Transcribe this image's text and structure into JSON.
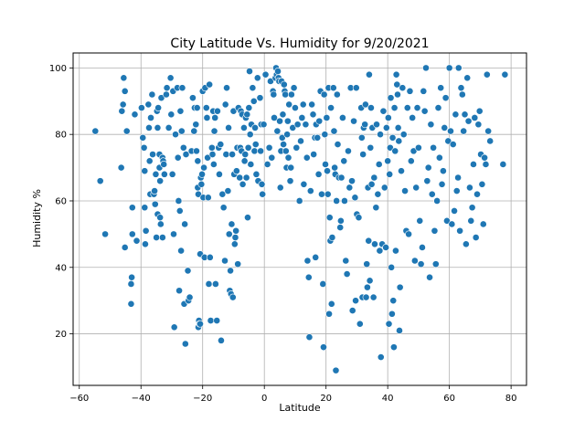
{
  "chart_data": {
    "type": "scatter",
    "title": "City Latitude Vs. Humidity for 9/20/2021",
    "xlabel": "Latitude",
    "ylabel": "Humidity %",
    "xlim": [
      -62,
      85
    ],
    "ylim": [
      4.5,
      104.5
    ],
    "xticks": [
      -60,
      -40,
      -20,
      0,
      20,
      40,
      60,
      80
    ],
    "yticks": [
      20,
      40,
      60,
      80,
      100
    ],
    "grid": true,
    "marker_color": "#1f77b4",
    "marker_edge_color": "#ffffff",
    "points": [
      [
        -54.8,
        81
      ],
      [
        -53.2,
        66
      ],
      [
        -51.6,
        50
      ],
      [
        -46.2,
        87
      ],
      [
        -46.4,
        70
      ],
      [
        -45.8,
        89
      ],
      [
        -45.6,
        97
      ],
      [
        -45.2,
        93
      ],
      [
        -45.2,
        46
      ],
      [
        -44.6,
        81
      ],
      [
        -42.8,
        58
      ],
      [
        -42.8,
        50
      ],
      [
        -43.0,
        37
      ],
      [
        -43.2,
        35
      ],
      [
        -43.2,
        29
      ],
      [
        -42.0,
        86
      ],
      [
        -41.4,
        48
      ],
      [
        -39.8,
        88
      ],
      [
        -39.4,
        79
      ],
      [
        -39.0,
        76
      ],
      [
        -38.8,
        69
      ],
      [
        -38.8,
        58
      ],
      [
        -38.6,
        47
      ],
      [
        -38.4,
        51
      ],
      [
        -37.6,
        89
      ],
      [
        -37.4,
        82
      ],
      [
        -37.2,
        72
      ],
      [
        -37.0,
        62
      ],
      [
        -36.8,
        85
      ],
      [
        -36.4,
        92
      ],
      [
        -36.2,
        74
      ],
      [
        -35.8,
        62
      ],
      [
        -35.6,
        63
      ],
      [
        -35.4,
        59
      ],
      [
        -35.2,
        68
      ],
      [
        -35.0,
        49
      ],
      [
        -34.8,
        87
      ],
      [
        -34.6,
        82
      ],
      [
        -34.6,
        56
      ],
      [
        -34.4,
        88
      ],
      [
        -34.0,
        74
      ],
      [
        -34.0,
        70
      ],
      [
        -33.8,
        66
      ],
      [
        -33.8,
        55
      ],
      [
        -33.6,
        53
      ],
      [
        -33.4,
        91
      ],
      [
        -33.0,
        73
      ],
      [
        -33.0,
        49
      ],
      [
        -32.8,
        72
      ],
      [
        -32.6,
        71
      ],
      [
        -32.4,
        68
      ],
      [
        -31.8,
        92
      ],
      [
        -31.6,
        94
      ],
      [
        -31.0,
        82
      ],
      [
        -30.4,
        97
      ],
      [
        -30.2,
        86
      ],
      [
        -29.8,
        68
      ],
      [
        -29.6,
        93
      ],
      [
        -29.4,
        50
      ],
      [
        -29.2,
        22
      ],
      [
        -28.8,
        80
      ],
      [
        -28.2,
        94
      ],
      [
        -28.0,
        73
      ],
      [
        -27.8,
        60
      ],
      [
        -27.6,
        33
      ],
      [
        -27.4,
        57
      ],
      [
        -27.2,
        87
      ],
      [
        -27.0,
        45
      ],
      [
        -26.8,
        81
      ],
      [
        -26.6,
        94
      ],
      [
        -26.2,
        76
      ],
      [
        -26.0,
        29
      ],
      [
        -25.8,
        53
      ],
      [
        -25.6,
        17
      ],
      [
        -25.4,
        74
      ],
      [
        -24.8,
        39
      ],
      [
        -24.6,
        30
      ],
      [
        -24.2,
        31
      ],
      [
        -23.6,
        75
      ],
      [
        -23.2,
        91
      ],
      [
        -22.8,
        81
      ],
      [
        -22.6,
        88
      ],
      [
        -22.2,
        83
      ],
      [
        -22.0,
        75
      ],
      [
        -21.8,
        88
      ],
      [
        -21.6,
        72
      ],
      [
        -21.6,
        64
      ],
      [
        -21.4,
        62
      ],
      [
        -21.4,
        22
      ],
      [
        -21.2,
        24
      ],
      [
        -21.0,
        23
      ],
      [
        -20.8,
        44
      ],
      [
        -20.8,
        23
      ],
      [
        -20.6,
        67
      ],
      [
        -20.4,
        65
      ],
      [
        -20.2,
        68
      ],
      [
        -20.0,
        93
      ],
      [
        -19.8,
        61
      ],
      [
        -19.6,
        70
      ],
      [
        -19.4,
        43
      ],
      [
        -19.2,
        94
      ],
      [
        -18.8,
        88
      ],
      [
        -18.6,
        85
      ],
      [
        -18.4,
        73
      ],
      [
        -18.2,
        61
      ],
      [
        -18.0,
        35
      ],
      [
        -17.8,
        95
      ],
      [
        -17.6,
        43
      ],
      [
        -17.4,
        24
      ],
      [
        -17.0,
        76
      ],
      [
        -16.8,
        74
      ],
      [
        -16.6,
        87
      ],
      [
        -16.4,
        71
      ],
      [
        -16.2,
        81
      ],
      [
        -16.0,
        85
      ],
      [
        -15.8,
        35
      ],
      [
        -15.4,
        24
      ],
      [
        -15.2,
        87
      ],
      [
        -14.8,
        76
      ],
      [
        -14.6,
        68
      ],
      [
        -14.2,
        77
      ],
      [
        -14.0,
        18
      ],
      [
        -13.6,
        62
      ],
      [
        -13.2,
        58
      ],
      [
        -12.8,
        42
      ],
      [
        -12.6,
        89
      ],
      [
        -12.4,
        74
      ],
      [
        -12.2,
        94
      ],
      [
        -11.8,
        63
      ],
      [
        -11.6,
        82
      ],
      [
        -11.4,
        50
      ],
      [
        -11.2,
        33
      ],
      [
        -11.0,
        39
      ],
      [
        -10.8,
        32
      ],
      [
        -10.6,
        53
      ],
      [
        -10.4,
        74
      ],
      [
        -10.2,
        31
      ],
      [
        -10.0,
        87
      ],
      [
        -9.8,
        68
      ],
      [
        -9.6,
        47
      ],
      [
        -9.4,
        49
      ],
      [
        -9.2,
        51
      ],
      [
        -9.0,
        69
      ],
      [
        -8.8,
        76
      ],
      [
        -8.6,
        41
      ],
      [
        -8.4,
        88
      ],
      [
        -8.0,
        67
      ],
      [
        -7.8,
        76
      ],
      [
        -7.6,
        87
      ],
      [
        -7.4,
        75
      ],
      [
        -7.2,
        86
      ],
      [
        -7.0,
        65
      ],
      [
        -6.6,
        82
      ],
      [
        -6.4,
        72
      ],
      [
        -6.2,
        74
      ],
      [
        -6.0,
        85
      ],
      [
        -5.8,
        67
      ],
      [
        -5.6,
        86
      ],
      [
        -5.4,
        55
      ],
      [
        -5.2,
        76
      ],
      [
        -5.0,
        88
      ],
      [
        -4.8,
        99
      ],
      [
        -4.6,
        80
      ],
      [
        -4.4,
        71
      ],
      [
        -4.2,
        83
      ],
      [
        -3.8,
        94
      ],
      [
        -3.4,
        90
      ],
      [
        -3.2,
        75
      ],
      [
        -3.0,
        82
      ],
      [
        -2.8,
        77
      ],
      [
        -2.6,
        68
      ],
      [
        -2.2,
        97
      ],
      [
        -2.0,
        66
      ],
      [
        -1.4,
        91
      ],
      [
        -1.2,
        75
      ],
      [
        -1.0,
        83
      ],
      [
        -0.8,
        65
      ],
      [
        -0.6,
        62
      ],
      [
        -0.2,
        83
      ],
      [
        0.4,
        98
      ],
      [
        1.0,
        71
      ],
      [
        1.6,
        76
      ],
      [
        2.0,
        96
      ],
      [
        2.4,
        73
      ],
      [
        2.8,
        93
      ],
      [
        3.0,
        92
      ],
      [
        3.2,
        85
      ],
      [
        3.6,
        97
      ],
      [
        3.8,
        100
      ],
      [
        4.0,
        98
      ],
      [
        4.2,
        81
      ],
      [
        4.4,
        99
      ],
      [
        4.6,
        97
      ],
      [
        4.8,
        96
      ],
      [
        5.0,
        84
      ],
      [
        5.2,
        64
      ],
      [
        5.4,
        75
      ],
      [
        5.6,
        96
      ],
      [
        5.8,
        79
      ],
      [
        6.0,
        86
      ],
      [
        6.2,
        77
      ],
      [
        6.4,
        95
      ],
      [
        6.6,
        93
      ],
      [
        6.8,
        92
      ],
      [
        7.0,
        75
      ],
      [
        7.2,
        70
      ],
      [
        7.4,
        80
      ],
      [
        7.6,
        84
      ],
      [
        7.8,
        73
      ],
      [
        8.0,
        89
      ],
      [
        8.4,
        66
      ],
      [
        8.6,
        70
      ],
      [
        8.8,
        92
      ],
      [
        9.2,
        82
      ],
      [
        9.6,
        94
      ],
      [
        10.0,
        88
      ],
      [
        10.4,
        76
      ],
      [
        10.8,
        83
      ],
      [
        11.4,
        60
      ],
      [
        11.8,
        78
      ],
      [
        12.2,
        85
      ],
      [
        12.6,
        89
      ],
      [
        12.8,
        65
      ],
      [
        13.4,
        83
      ],
      [
        13.8,
        73
      ],
      [
        14.0,
        42
      ],
      [
        14.4,
        37
      ],
      [
        14.6,
        19
      ],
      [
        15.0,
        63
      ],
      [
        15.4,
        89
      ],
      [
        15.8,
        86
      ],
      [
        16.0,
        74
      ],
      [
        16.4,
        79
      ],
      [
        16.6,
        43
      ],
      [
        16.8,
        83
      ],
      [
        17.2,
        79
      ],
      [
        17.6,
        68
      ],
      [
        17.8,
        84
      ],
      [
        18.2,
        93
      ],
      [
        18.6,
        62
      ],
      [
        19.0,
        35
      ],
      [
        19.2,
        16
      ],
      [
        19.4,
        92
      ],
      [
        19.6,
        80
      ],
      [
        19.8,
        71
      ],
      [
        20.2,
        85
      ],
      [
        20.4,
        69
      ],
      [
        20.6,
        62
      ],
      [
        20.8,
        94
      ],
      [
        21.0,
        26
      ],
      [
        21.2,
        55
      ],
      [
        21.4,
        48
      ],
      [
        21.6,
        88
      ],
      [
        21.8,
        29
      ],
      [
        22.0,
        49
      ],
      [
        22.4,
        94
      ],
      [
        22.6,
        81
      ],
      [
        22.8,
        70
      ],
      [
        23.0,
        68
      ],
      [
        23.2,
        9
      ],
      [
        23.4,
        60
      ],
      [
        23.6,
        92
      ],
      [
        23.8,
        77
      ],
      [
        24.2,
        67
      ],
      [
        24.6,
        52
      ],
      [
        24.8,
        54
      ],
      [
        25.0,
        67
      ],
      [
        25.4,
        85
      ],
      [
        25.8,
        72
      ],
      [
        26.0,
        60
      ],
      [
        26.4,
        42
      ],
      [
        26.8,
        38
      ],
      [
        27.2,
        75
      ],
      [
        27.6,
        64
      ],
      [
        28.0,
        94
      ],
      [
        28.4,
        66
      ],
      [
        28.6,
        27
      ],
      [
        29.0,
        84
      ],
      [
        29.4,
        61
      ],
      [
        29.6,
        30
      ],
      [
        29.8,
        94
      ],
      [
        30.0,
        56
      ],
      [
        30.6,
        55
      ],
      [
        31.0,
        23
      ],
      [
        31.4,
        88
      ],
      [
        31.6,
        79
      ],
      [
        31.8,
        31
      ],
      [
        32.0,
        74
      ],
      [
        32.2,
        82
      ],
      [
        32.6,
        83
      ],
      [
        32.8,
        89
      ],
      [
        33.0,
        31
      ],
      [
        33.2,
        41
      ],
      [
        33.4,
        34
      ],
      [
        33.6,
        64
      ],
      [
        33.8,
        48
      ],
      [
        34.0,
        98
      ],
      [
        34.2,
        36
      ],
      [
        34.4,
        76
      ],
      [
        34.6,
        88
      ],
      [
        34.8,
        65
      ],
      [
        35.0,
        82
      ],
      [
        35.4,
        31
      ],
      [
        35.6,
        67
      ],
      [
        35.8,
        47
      ],
      [
        36.2,
        58
      ],
      [
        36.4,
        83
      ],
      [
        36.8,
        62
      ],
      [
        37.2,
        71
      ],
      [
        37.4,
        45
      ],
      [
        37.6,
        80
      ],
      [
        37.8,
        13
      ],
      [
        38.2,
        47
      ],
      [
        38.6,
        87
      ],
      [
        39.0,
        64
      ],
      [
        39.4,
        46
      ],
      [
        39.6,
        82
      ],
      [
        40.0,
        72
      ],
      [
        40.2,
        85
      ],
      [
        40.4,
        23
      ],
      [
        40.6,
        68
      ],
      [
        40.8,
        76
      ],
      [
        41.0,
        91
      ],
      [
        41.2,
        40
      ],
      [
        41.4,
        26
      ],
      [
        41.6,
        79
      ],
      [
        41.8,
        30
      ],
      [
        42.0,
        16
      ],
      [
        42.2,
        88
      ],
      [
        42.4,
        75
      ],
      [
        42.6,
        45
      ],
      [
        42.8,
        98
      ],
      [
        43.0,
        95
      ],
      [
        43.2,
        92
      ],
      [
        43.4,
        82
      ],
      [
        43.6,
        78
      ],
      [
        43.8,
        21
      ],
      [
        44.0,
        34
      ],
      [
        44.4,
        69
      ],
      [
        44.8,
        94
      ],
      [
        45.2,
        80
      ],
      [
        45.6,
        63
      ],
      [
        46.0,
        51
      ],
      [
        46.4,
        88
      ],
      [
        46.8,
        50
      ],
      [
        47.2,
        93
      ],
      [
        47.6,
        72
      ],
      [
        48.0,
        85
      ],
      [
        48.4,
        75
      ],
      [
        48.8,
        42
      ],
      [
        49.2,
        64
      ],
      [
        49.6,
        88
      ],
      [
        50.0,
        76
      ],
      [
        50.4,
        54
      ],
      [
        50.8,
        41
      ],
      [
        51.2,
        46
      ],
      [
        51.6,
        93
      ],
      [
        52.0,
        87
      ],
      [
        52.4,
        100
      ],
      [
        52.8,
        66
      ],
      [
        53.2,
        70
      ],
      [
        53.6,
        37
      ],
      [
        54.0,
        83
      ],
      [
        54.4,
        62
      ],
      [
        54.8,
        76
      ],
      [
        55.2,
        51
      ],
      [
        55.6,
        41
      ],
      [
        56.0,
        60
      ],
      [
        56.4,
        88
      ],
      [
        56.8,
        73
      ],
      [
        57.2,
        94
      ],
      [
        57.6,
        65
      ],
      [
        58.0,
        69
      ],
      [
        58.4,
        82
      ],
      [
        58.8,
        91
      ],
      [
        59.2,
        54
      ],
      [
        59.6,
        78
      ],
      [
        60.0,
        100
      ],
      [
        60.4,
        81
      ],
      [
        60.8,
        53
      ],
      [
        61.2,
        77
      ],
      [
        61.6,
        57
      ],
      [
        62.0,
        86
      ],
      [
        62.4,
        63
      ],
      [
        62.8,
        67
      ],
      [
        63.0,
        100
      ],
      [
        63.4,
        51
      ],
      [
        63.8,
        94
      ],
      [
        64.2,
        92
      ],
      [
        64.6,
        81
      ],
      [
        65.0,
        86
      ],
      [
        65.4,
        47
      ],
      [
        65.8,
        97
      ],
      [
        66.2,
        84
      ],
      [
        66.6,
        64
      ],
      [
        67.0,
        54
      ],
      [
        67.4,
        58
      ],
      [
        67.8,
        71
      ],
      [
        68.2,
        85
      ],
      [
        68.6,
        49
      ],
      [
        69.0,
        62
      ],
      [
        69.4,
        83
      ],
      [
        69.8,
        87
      ],
      [
        70.2,
        74
      ],
      [
        70.6,
        65
      ],
      [
        71.0,
        53
      ],
      [
        71.4,
        73
      ],
      [
        71.8,
        71
      ],
      [
        72.2,
        98
      ],
      [
        72.6,
        81
      ],
      [
        73.2,
        78
      ],
      [
        77.4,
        71
      ],
      [
        78.0,
        98
      ]
    ]
  }
}
